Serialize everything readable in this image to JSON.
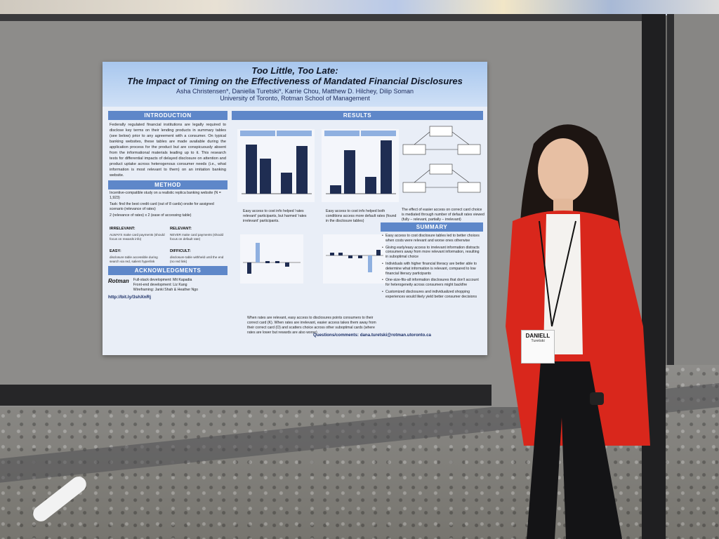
{
  "poster": {
    "title": "Too Little, Too Late:",
    "subtitle": "The Impact of Timing on the Effectiveness of Mandated Financial Disclosures",
    "authors": "Asha Christensen*, Daniella Turetski*, Karrie Chou, Matthew D. Hilchey, Dilip Soman",
    "affiliation": "University of Toronto, Rotman School of Management",
    "introduction": {
      "heading": "INTRODUCTION",
      "text": "Federally regulated financial institutions are legally required to disclose key terms on their lending products in summary tables (see below) prior to any agreement with a consumer. On typical banking websites, these tables are made available during the application process for the product but are conspicuously absent from the informational materials leading up to it. This research tests for differential impacts of delayed disclosure on attention and product uptake across heterogenous consumer needs (i.e., what information is most relevant to them) on an imitation banking website."
    },
    "method": {
      "heading": "METHOD",
      "item1": "Incentive-compatible study on a realistic replica banking website (N = 1,923)",
      "item2": "Task: find the best credit card (out of 8 cards) onsite for assigned scenario (relevance of rates)",
      "design": "2 (relevance of rates) x 2 (ease of accessing table)",
      "irrelevant_label": "IRRELEVANT:",
      "irrelevant_text": "ALWAYS make card payments (should focus on rewards info)",
      "relevant_label": "RELEVANT:",
      "relevant_text": "NEVER make card payments (should focus on default rate)",
      "easy_label": "EASY:",
      "easy_text": "disclosure table accessible during search via red, salient hyperlink",
      "difficult_label": "DIFFICULT:",
      "difficult_text": "disclosure table withheld until the end (no red link)"
    },
    "acknowledgments": {
      "heading": "ACKNOWLEDGMENTS",
      "logo": "Rotman",
      "line1": "Full-stack development: Mit Kapadia",
      "line2": "Front-end development: Liz Kang",
      "line3": "Wireframing: Janki Shah & Heather Ngo",
      "osf": "http://bit.ly/3shXnRj"
    },
    "results": {
      "heading": "RESULTS",
      "chart1_caption": "Easy access to cost info helped 'rates relevant' participants, but harmed 'rates irrelevant' participants.",
      "chart2_caption": "Easy access to cost info helped both conditions access more default rates (found in the disclosure tables)",
      "flow_caption": "The effect of easier access on correct card choice is mediated through number of default rates viewed (fully – relevant, partially – irrelevant)",
      "bottom_caption": "When rates are relevant, easy access to disclosures points consumers to their correct card (K). When rates are irrelevant, easier access takes them away from their correct card (O) and scatters choice across other suboptimal cards (where rates are lower but rewards are also worse)"
    },
    "summary": {
      "heading": "SUMMARY",
      "items": [
        "Easy access to cost disclosure tables led to better choices when costs were relevant and worse ones otherwise",
        "Giving early/easy access to irrelevant information distracts consumers away from more relevant information, resulting in suboptimal choice",
        "Individuals with higher financial literacy are better able to determine what information is relevant, compared to low financial literacy participants",
        "One-size-fits-all information disclosures that don't account for heterogeneity across consumers might backfire",
        "Customized disclosures and individualized shopping experiences would likely yield better consumer decisions"
      ]
    },
    "contact": "Questions/comments: dana.turetski@rotman.utoronto.ca"
  },
  "badge": {
    "first_name": "DANIELL",
    "last_name": "Turetski"
  }
}
